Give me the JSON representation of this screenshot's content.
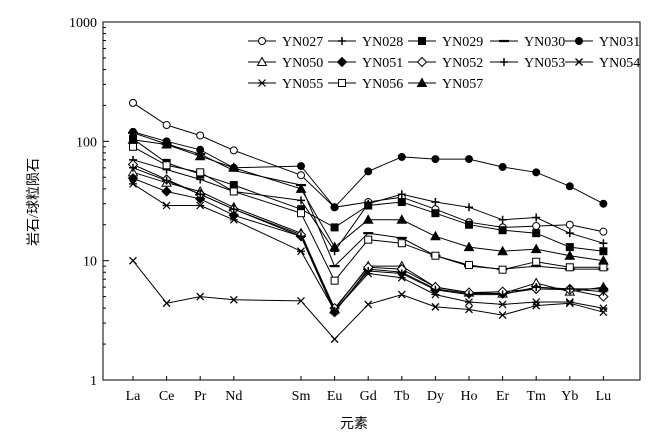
{
  "chart_data": {
    "type": "line",
    "title": "",
    "xlabel": "元素",
    "ylabel": "岩石/球粒陨石",
    "yscale": "log",
    "ylim": [
      1,
      1000
    ],
    "yticks": [
      "1",
      "10",
      "100",
      "1000"
    ],
    "grid": false,
    "legend_position": "top-right",
    "categories": [
      "La",
      "Ce",
      "Pr",
      "Nd",
      "Sm",
      "Eu",
      "Gd",
      "Tb",
      "Dy",
      "Ho",
      "Er",
      "Tm",
      "Yb",
      "Lu"
    ],
    "x_positions": [
      0,
      1,
      2,
      3,
      5,
      6,
      7,
      8,
      9,
      10,
      11,
      12,
      13,
      14
    ],
    "series": [
      {
        "name": "YN027",
        "marker": "circle-open",
        "values": [
          210,
          137,
          112,
          84,
          52,
          28,
          31,
          34,
          27,
          21,
          19,
          19.5,
          20,
          17.5
        ]
      },
      {
        "name": "YN028",
        "marker": "plus",
        "values": [
          70,
          58,
          48,
          38,
          32,
          12,
          30,
          36,
          31,
          28,
          22,
          23,
          17,
          14
        ]
      },
      {
        "name": "YN029",
        "marker": "square-filled",
        "values": [
          105,
          66,
          53,
          43,
          27,
          19,
          29,
          31,
          25,
          20,
          18,
          17,
          13,
          12
        ]
      },
      {
        "name": "YN030",
        "marker": "dash",
        "values": [
          118,
          95,
          78,
          57,
          43,
          9,
          17,
          15.5,
          11,
          9,
          8.5,
          9,
          8.5,
          8.5
        ]
      },
      {
        "name": "YN031",
        "marker": "circle-filled",
        "values": [
          120,
          100,
          85,
          60,
          62,
          28,
          56,
          74,
          71,
          71,
          61,
          55,
          42,
          30
        ]
      },
      {
        "name": "YN050",
        "marker": "triangle-open",
        "values": [
          55,
          45,
          38,
          28,
          17,
          3.9,
          9,
          9,
          6,
          5.4,
          5.3,
          6.5,
          5.5,
          6
        ]
      },
      {
        "name": "YN051",
        "marker": "diamond-filled",
        "values": [
          49,
          38,
          33,
          24,
          16,
          3.7,
          8.5,
          8,
          5.8,
          5.3,
          5.3,
          5.8,
          5.8,
          5.8
        ]
      },
      {
        "name": "YN052",
        "marker": "diamond-open",
        "values": [
          64,
          48,
          36,
          27,
          16.5,
          4,
          8.8,
          8.5,
          6,
          5.4,
          5.5,
          5.8,
          5.7,
          5
        ]
      },
      {
        "name": "YN053",
        "marker": "plus",
        "values": [
          60,
          47,
          36,
          27,
          16,
          3.8,
          8.2,
          7.8,
          5.7,
          5.2,
          5.2,
          6,
          5.8,
          5.5
        ]
      },
      {
        "name": "YN054",
        "marker": "x",
        "values": [
          10,
          4.4,
          5,
          4.7,
          4.6,
          2.2,
          4.3,
          5.2,
          4.1,
          3.9,
          3.5,
          4.2,
          4.4,
          3.7
        ]
      },
      {
        "name": "YN055",
        "marker": "asterisk",
        "values": [
          44,
          29,
          29,
          22,
          12,
          3.8,
          7.8,
          7.2,
          5.2,
          4.5,
          4.3,
          4.5,
          4.5,
          4
        ]
      },
      {
        "name": "YN056",
        "marker": "square-open",
        "values": [
          90,
          63,
          55,
          38,
          25,
          6.8,
          15,
          14,
          11,
          9.2,
          8.4,
          9.8,
          8.8,
          8.8
        ]
      },
      {
        "name": "YN057",
        "marker": "triangle-filled",
        "values": [
          103,
          94,
          75,
          60,
          40,
          13,
          22,
          22,
          16,
          13,
          12,
          12.5,
          11,
          10
        ]
      }
    ]
  }
}
